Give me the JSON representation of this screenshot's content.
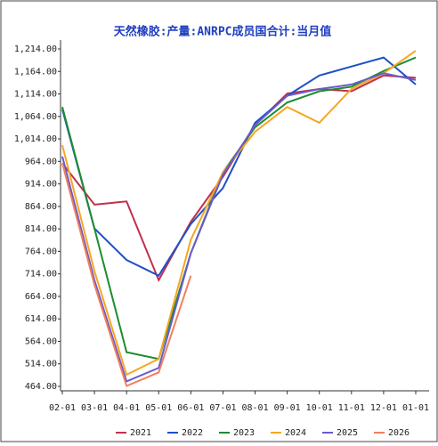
{
  "chart_data": {
    "type": "line",
    "title": "天然橡胶:产量:ANRPC成员国合计:当月值",
    "categories": [
      "02-01",
      "03-01",
      "04-01",
      "05-01",
      "06-01",
      "07-01",
      "08-01",
      "09-01",
      "10-01",
      "11-01",
      "12-01",
      "01-01"
    ],
    "series": [
      {
        "name": "2021",
        "color": "#c0304a",
        "values": [
          960,
          868,
          875,
          700,
          830,
          930,
          1045,
          1115,
          1125,
          1120,
          1155,
          1150
        ]
      },
      {
        "name": "2022",
        "color": "#1f4fc8",
        "values": [
          1080,
          815,
          745,
          710,
          825,
          905,
          1050,
          1110,
          1155,
          1175,
          1195,
          1135
        ]
      },
      {
        "name": "2023",
        "color": "#1e8c2e",
        "values": [
          1085,
          815,
          540,
          525,
          760,
          940,
          1040,
          1095,
          1120,
          1130,
          1165,
          1195
        ]
      },
      {
        "name": "2024",
        "color": "#f5a623",
        "values": [
          1000,
          720,
          490,
          525,
          790,
          940,
          1030,
          1085,
          1050,
          1125,
          1160,
          1210
        ]
      },
      {
        "name": "2025",
        "color": "#6a5acd",
        "values": [
          975,
          700,
          475,
          505,
          760,
          935,
          1045,
          1110,
          1125,
          1135,
          1160,
          1145
        ]
      },
      {
        "name": "2026",
        "color": "#f08060",
        "values": [
          960,
          690,
          465,
          495,
          710,
          null,
          null,
          null,
          null,
          null,
          null,
          null
        ]
      }
    ],
    "ylim": [
      464,
      1214
    ],
    "yticks": [
      {
        "value": 464,
        "label": "464.00"
      },
      {
        "value": 514,
        "label": "514.00"
      },
      {
        "value": 564,
        "label": "564.00"
      },
      {
        "value": 614,
        "label": "614.00"
      },
      {
        "value": 664,
        "label": "664.00"
      },
      {
        "value": 714,
        "label": "714.00"
      },
      {
        "value": 764,
        "label": "764.00"
      },
      {
        "value": 814,
        "label": "814.00"
      },
      {
        "value": 864,
        "label": "864.00"
      },
      {
        "value": 914,
        "label": "914.00"
      },
      {
        "value": 964,
        "label": "964.00"
      },
      {
        "value": 1014,
        "label": "1,014.00"
      },
      {
        "value": 1064,
        "label": "1,064.00"
      },
      {
        "value": 1114,
        "label": "1,114.00"
      },
      {
        "value": 1164,
        "label": "1,164.00"
      },
      {
        "value": 1214,
        "label": "1,214.00"
      }
    ]
  }
}
